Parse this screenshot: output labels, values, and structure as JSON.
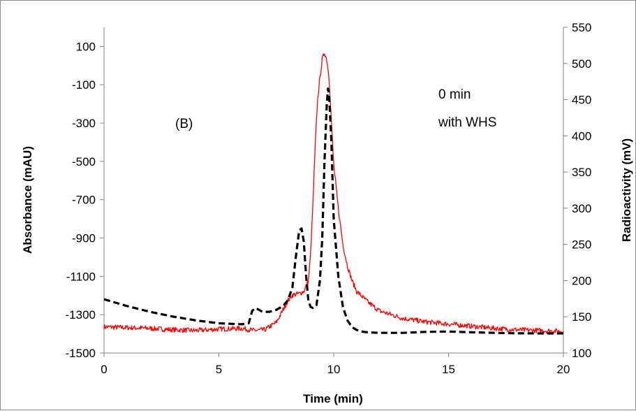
{
  "chart_data": {
    "type": "line",
    "title": "",
    "panel_label": "(B)",
    "annotation_lines": [
      "0 min",
      "with WHS"
    ],
    "xlabel": "Time (min)",
    "ylabel_left": "Absorbance (mAU)",
    "ylabel_right": "Radioactivity (mV)",
    "xlim": [
      0,
      20
    ],
    "ylim_left": [
      -1500,
      200
    ],
    "ylim_right": [
      100,
      550
    ],
    "x_ticks": [
      "0",
      "5",
      "10",
      "15",
      "20"
    ],
    "y_left_ticks": [
      "100",
      "-100",
      "-300",
      "-500",
      "-700",
      "-900",
      "-1100",
      "-1300",
      "-1500"
    ],
    "y_right_ticks": [
      "550",
      "500",
      "450",
      "400",
      "350",
      "300",
      "250",
      "200",
      "150",
      "100"
    ],
    "grid": false,
    "colors": {
      "absorbance": "#000000",
      "radioactivity": "#ff0000"
    },
    "series": [
      {
        "axis": "left",
        "style": "dashed",
        "color": "#000000",
        "x": [
          0,
          1,
          2,
          3,
          4,
          5,
          6,
          6.3,
          6.45,
          6.6,
          6.9,
          7.2,
          7.5,
          7.8,
          8.0,
          8.2,
          8.35,
          8.5,
          8.6,
          8.7,
          8.8,
          8.9,
          9.0,
          9.1,
          9.25,
          9.4,
          9.5,
          9.6,
          9.7,
          9.75,
          9.8,
          9.9,
          10.0,
          10.2,
          10.4,
          10.6,
          10.8,
          11.0,
          11.3,
          11.6,
          12.0,
          13.0,
          14.0,
          15.0,
          16.0,
          17.0,
          18.0,
          19.0,
          20.0
        ],
        "y": [
          -1220,
          -1255,
          -1285,
          -1310,
          -1330,
          -1345,
          -1350,
          -1345,
          -1280,
          -1265,
          -1285,
          -1285,
          -1275,
          -1255,
          -1225,
          -1160,
          -1000,
          -860,
          -850,
          -920,
          -1100,
          -1230,
          -1260,
          -1265,
          -1250,
          -1120,
          -900,
          -500,
          -200,
          -120,
          -150,
          -400,
          -800,
          -1100,
          -1260,
          -1330,
          -1365,
          -1380,
          -1390,
          -1393,
          -1395,
          -1395,
          -1390,
          -1388,
          -1392,
          -1395,
          -1397,
          -1398,
          -1398
        ]
      },
      {
        "axis": "right",
        "style": "solid",
        "color": "#ff0000",
        "x": [
          0,
          1,
          2,
          3,
          4,
          5,
          6,
          6.5,
          7,
          7.5,
          7.8,
          8.0,
          8.2,
          8.5,
          8.7,
          8.9,
          9.0,
          9.1,
          9.2,
          9.3,
          9.4,
          9.5,
          9.6,
          9.7,
          9.8,
          9.9,
          10.0,
          10.2,
          10.4,
          10.6,
          10.8,
          11.0,
          11.5,
          12.0,
          13.0,
          14.0,
          15.0,
          16.0,
          17.0,
          18.0,
          19.0,
          20.0
        ],
        "y": [
          136,
          135,
          134,
          132,
          131,
          133,
          134,
          131,
          132,
          142,
          160,
          172,
          180,
          182,
          185,
          200,
          240,
          310,
          390,
          450,
          480,
          505,
          515,
          505,
          480,
          420,
          360,
          300,
          250,
          220,
          200,
          185,
          170,
          158,
          148,
          143,
          140,
          137,
          134,
          132,
          131,
          130
        ]
      }
    ]
  }
}
